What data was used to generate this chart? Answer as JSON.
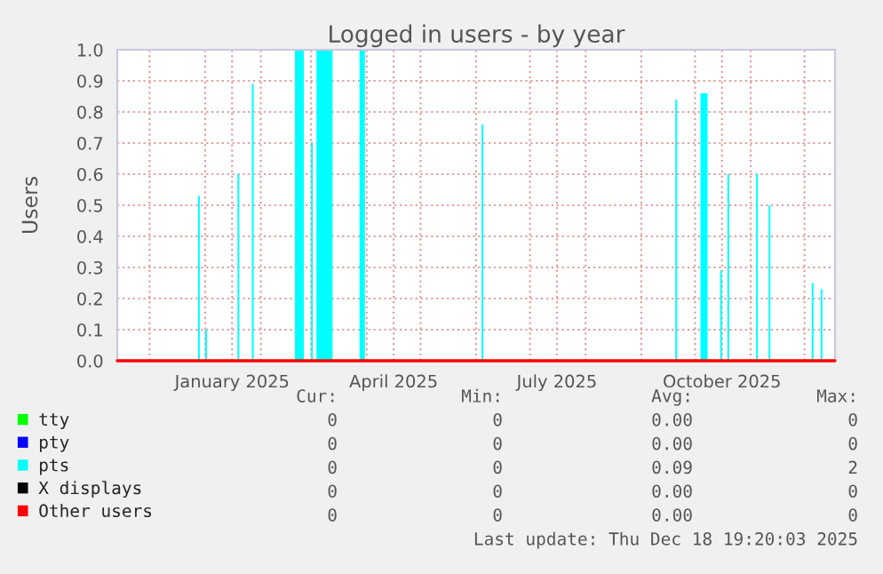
{
  "chart_data": {
    "type": "area",
    "title": "Logged in users - by year",
    "ylabel": "Users",
    "xlim": [
      "2024-11-13",
      "2025-12-18"
    ],
    "xticks": [
      {
        "value": "2024-12-01",
        "label": null
      },
      {
        "value": "2025-01-01",
        "label": null
      },
      {
        "value": "2025-01-16",
        "label": "January 2025"
      },
      {
        "value": "2025-02-01",
        "label": null
      },
      {
        "value": "2025-03-01",
        "label": null
      },
      {
        "value": "2025-04-01",
        "label": null
      },
      {
        "value": "2025-04-16",
        "label": "April 2025"
      },
      {
        "value": "2025-05-01",
        "label": null
      },
      {
        "value": "2025-06-01",
        "label": null
      },
      {
        "value": "2025-07-01",
        "label": null
      },
      {
        "value": "2025-07-16",
        "label": "July 2025"
      },
      {
        "value": "2025-08-01",
        "label": null
      },
      {
        "value": "2025-09-01",
        "label": null
      },
      {
        "value": "2025-10-01",
        "label": null
      },
      {
        "value": "2025-10-16",
        "label": "October 2025"
      },
      {
        "value": "2025-11-01",
        "label": null
      },
      {
        "value": "2025-12-01",
        "label": null
      }
    ],
    "ylim": [
      0,
      1.0
    ],
    "yticks": [
      {
        "value": 0,
        "label": "0.0"
      },
      0.1,
      0.2,
      0.3,
      0.4,
      0.5,
      0.6,
      0.7,
      0.8,
      0.9,
      {
        "value": 1,
        "label": "1.0"
      }
    ],
    "grid": true,
    "legend": "bottom left",
    "series": [
      {
        "name": "tty",
        "color": "#00ff00",
        "type": "line"
      },
      {
        "name": "pty",
        "color": "#0000ff",
        "type": "line"
      },
      {
        "name": "pts",
        "color": "#00ffff",
        "x": [
          "2024-12-28",
          "2024-12-29",
          "2025-01-01",
          "2025-01-02",
          "2025-01-19",
          "2025-01-20",
          "2025-01-27",
          "2025-01-28",
          "2025-02-20",
          "2025-02-25",
          "2025-03-01",
          "2025-03-02",
          "2025-03-04",
          "2025-03-13",
          "2025-03-28",
          "2025-03-31",
          "2025-06-04",
          "2025-06-05",
          "2025-09-20",
          "2025-09-21",
          "2025-10-04",
          "2025-10-08",
          "2025-10-15",
          "2025-10-16",
          "2025-10-19",
          "2025-10-20",
          "2025-11-04",
          "2025-11-05",
          "2025-11-11",
          "2025-11-12",
          "2025-12-05",
          "2025-12-06",
          "2025-12-10",
          "2025-12-11"
        ],
        "values": [
          0.53,
          0,
          0.1,
          0,
          0.6,
          0,
          0.89,
          0,
          1.0,
          0,
          0.7,
          0,
          1.0,
          0,
          1.0,
          0,
          0.76,
          0,
          0.84,
          0,
          0.86,
          0,
          0.29,
          0,
          0.6,
          0,
          0.6,
          0,
          0.5,
          0,
          0.25,
          0,
          0.23,
          0
        ]
      },
      {
        "name": "X displays",
        "color": "#000000",
        "type": "line"
      },
      {
        "name": "Other users",
        "color": "#ff0000",
        "type": "line",
        "x": [
          "2024-11-13",
          "2025-12-18"
        ],
        "values": [
          0,
          0
        ]
      }
    ],
    "annotations": [
      "Cur:",
      "Min:",
      "Avg:",
      "Max:",
      "0",
      "0",
      "0.00",
      "0",
      "0",
      "0",
      "0.00",
      "0",
      "0",
      "0",
      "0.09",
      "2",
      "0",
      "0",
      "0.00",
      "0",
      "0",
      "0",
      "0.00",
      "0",
      "Last update: Thu Dec 18 19:20:03 2025"
    ]
  }
}
